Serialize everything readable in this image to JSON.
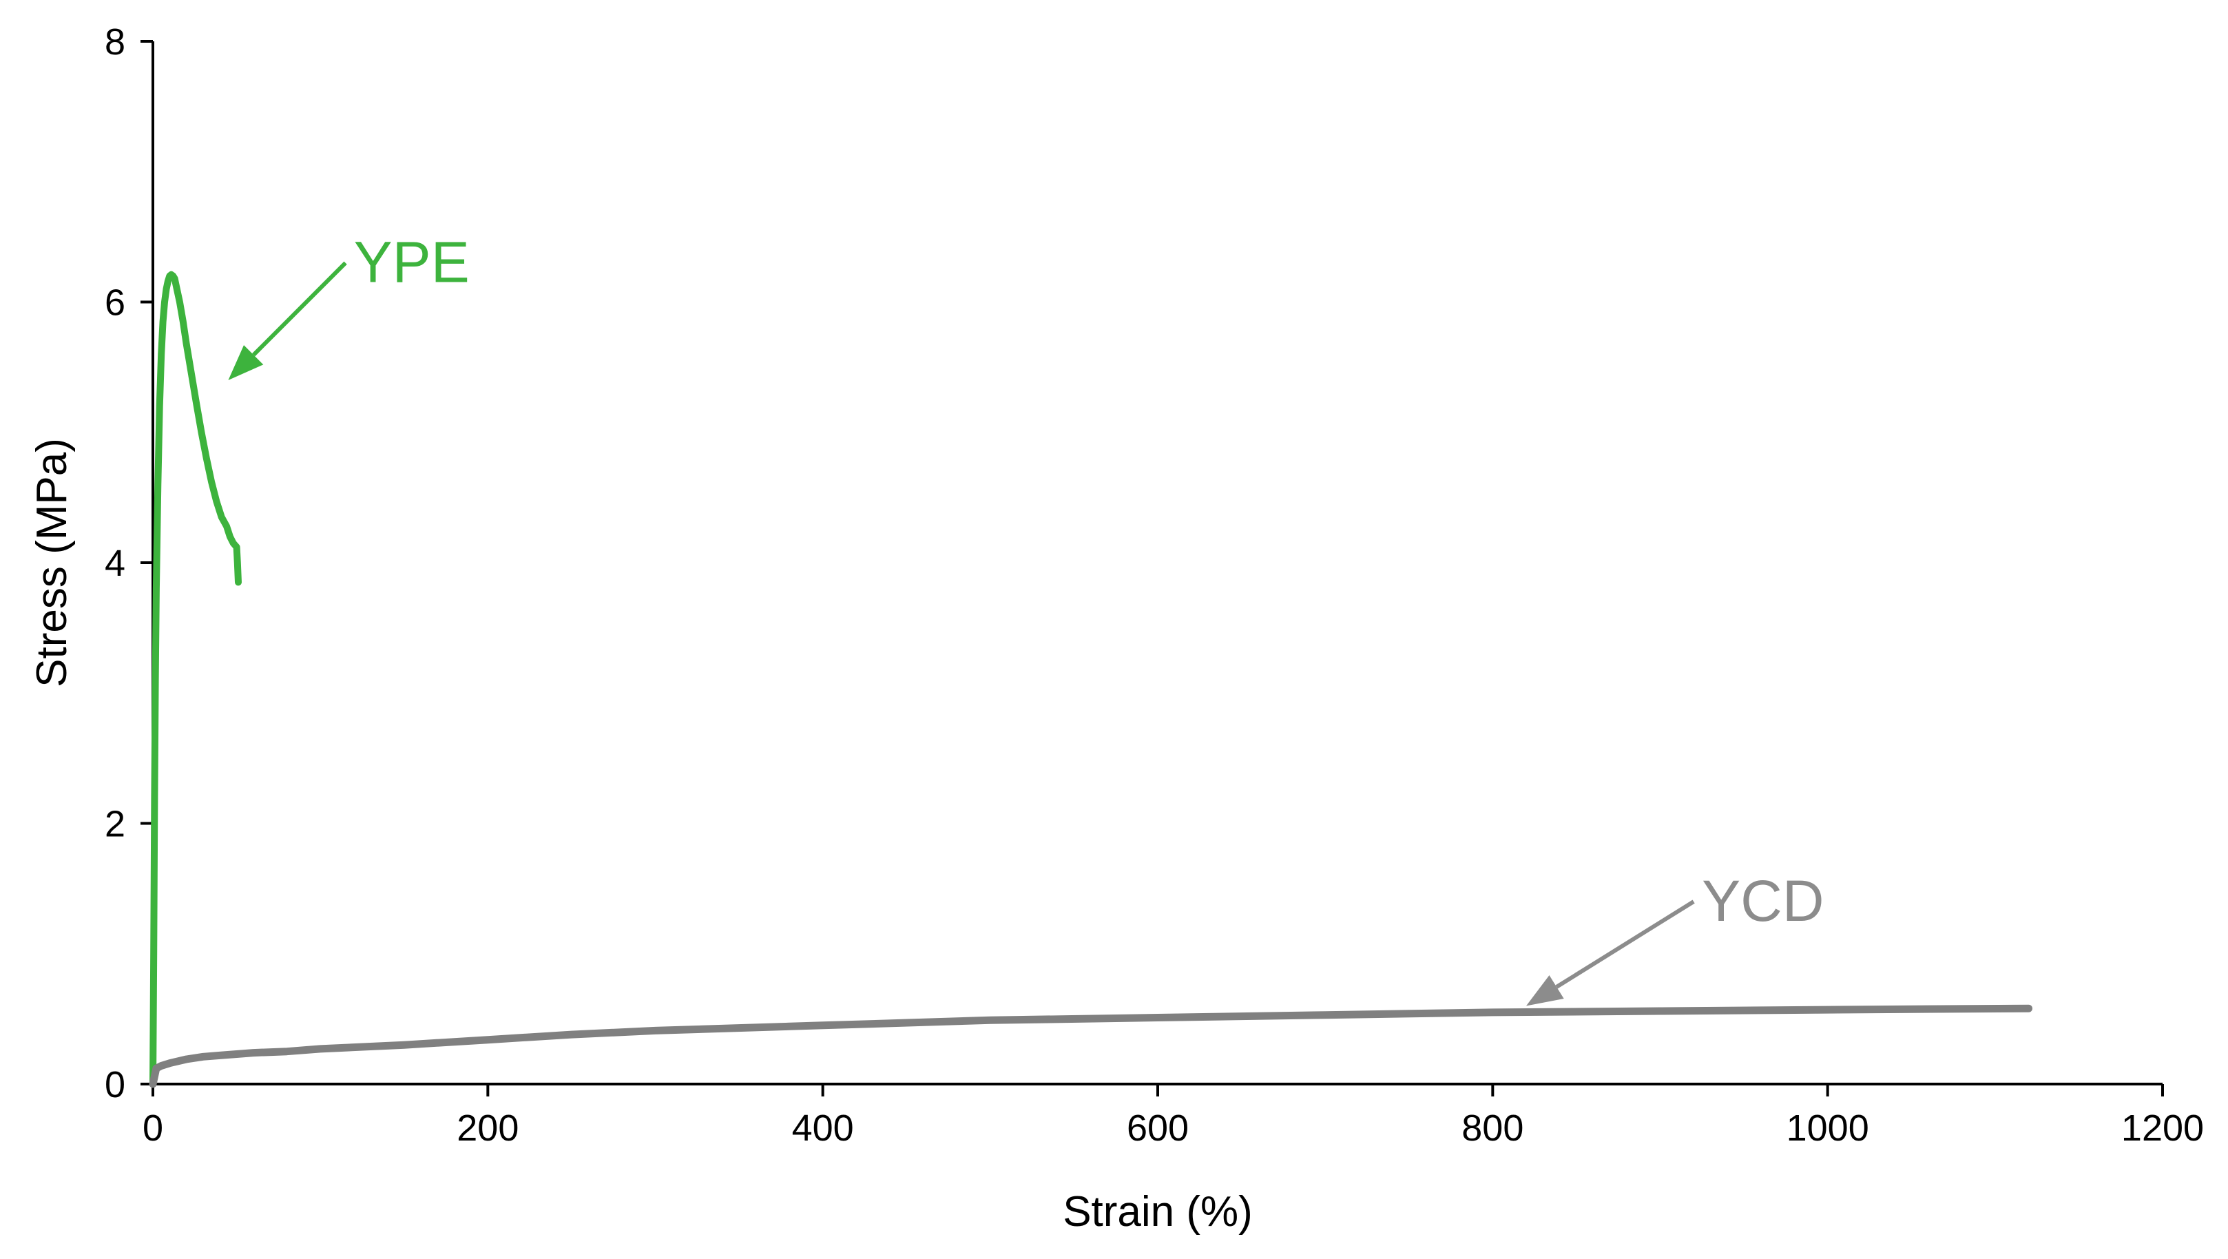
{
  "chart_data": {
    "type": "line",
    "xlabel": "Strain (%)",
    "ylabel": "Stress (MPa)",
    "xlim": [
      0,
      1200
    ],
    "ylim": [
      0,
      8
    ],
    "xticks": [
      0,
      200,
      400,
      600,
      800,
      1000,
      1200
    ],
    "yticks": [
      0,
      2,
      4,
      6,
      8
    ],
    "grid": false,
    "legend": "none",
    "series": [
      {
        "name": "YPE",
        "color": "#3db33d",
        "x": [
          0,
          0.5,
          1,
          1.5,
          2,
          3,
          4,
          5,
          6,
          7,
          8,
          9,
          10,
          11,
          12,
          13,
          14,
          16,
          18,
          20,
          23,
          26,
          29,
          32,
          35,
          38,
          41,
          44,
          46,
          48,
          50,
          50.5,
          51
        ],
        "y": [
          0,
          1.0,
          2.2,
          3.1,
          3.8,
          4.6,
          5.2,
          5.6,
          5.85,
          6.0,
          6.1,
          6.16,
          6.2,
          6.21,
          6.2,
          6.18,
          6.12,
          6.0,
          5.85,
          5.68,
          5.45,
          5.22,
          5.0,
          4.8,
          4.62,
          4.47,
          4.35,
          4.28,
          4.2,
          4.15,
          4.12,
          4.0,
          3.85
        ]
      },
      {
        "name": "YCD",
        "color": "#808080",
        "x": [
          0,
          2,
          5,
          10,
          20,
          30,
          40,
          60,
          80,
          100,
          150,
          200,
          250,
          300,
          400,
          500,
          600,
          700,
          800,
          900,
          1000,
          1120
        ],
        "y": [
          0,
          0.12,
          0.14,
          0.16,
          0.19,
          0.21,
          0.22,
          0.24,
          0.25,
          0.27,
          0.3,
          0.34,
          0.38,
          0.41,
          0.45,
          0.49,
          0.51,
          0.53,
          0.55,
          0.56,
          0.57,
          0.58
        ]
      }
    ],
    "annotations": [
      {
        "text": "YPE",
        "color": "#3db33d",
        "arrow_from": [
          115,
          6.3
        ],
        "arrow_to": [
          45,
          5.4
        ]
      },
      {
        "text": "YCD",
        "color": "#8c8c8c",
        "arrow_from": [
          920,
          1.4
        ],
        "arrow_to": [
          820,
          0.6
        ]
      }
    ]
  }
}
